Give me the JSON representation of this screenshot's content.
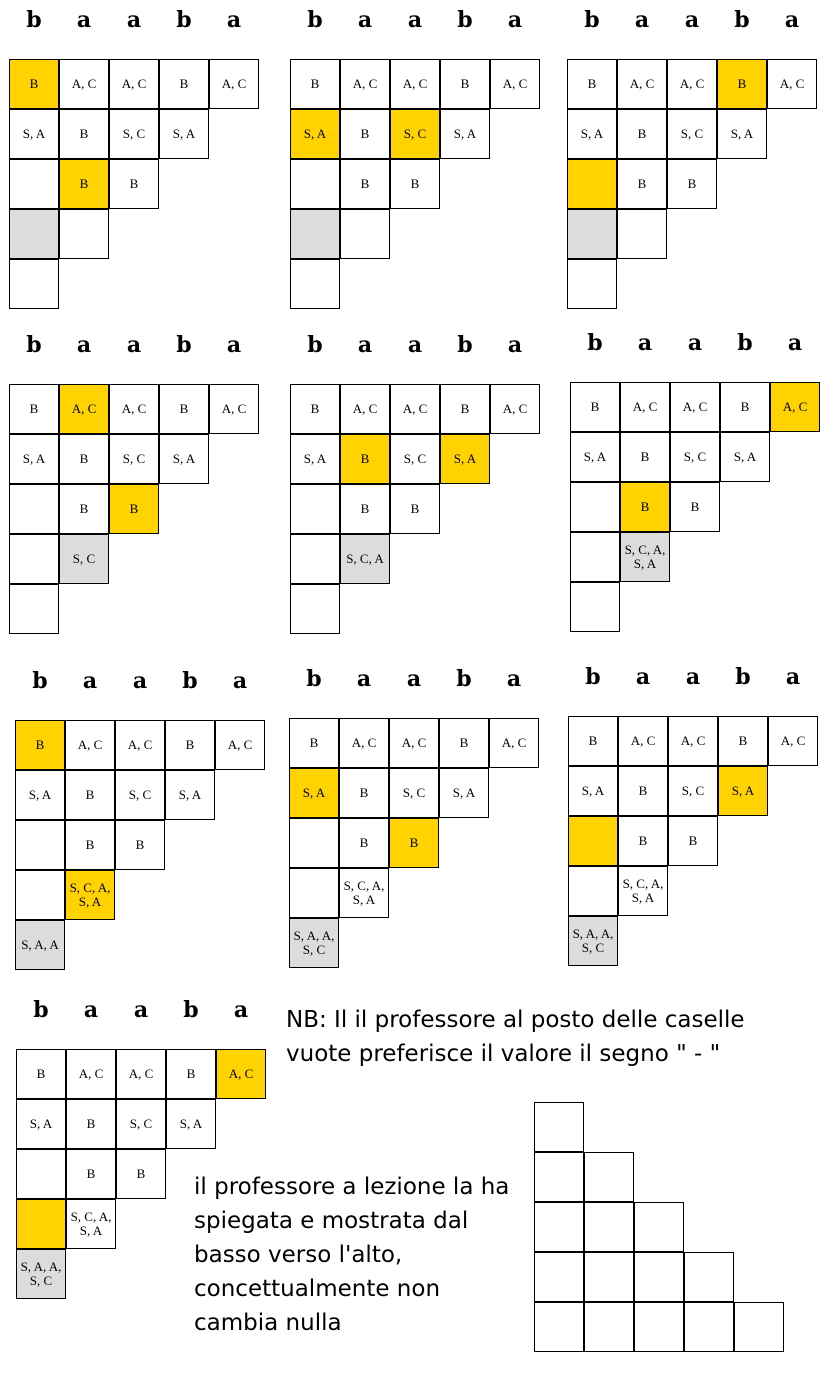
{
  "header_letters": [
    "b",
    "a",
    "a",
    "b",
    "a"
  ],
  "colors": {
    "highlight": "#ffd200",
    "computed": "#dcdcdc"
  },
  "panels": [
    {
      "id": "p1",
      "cells": {
        "0,0": "B",
        "0,1": "A, C",
        "0,2": "A, C",
        "0,3": "B",
        "0,4": "A, C",
        "1,0": "S, A",
        "1,1": "B",
        "1,2": "S, C",
        "1,3": "S, A",
        "2,0": "",
        "2,1": "B",
        "2,2": "B",
        "3,0": "",
        "3,1": "",
        "4,0": ""
      },
      "yellow": [
        "0,0",
        "2,1"
      ],
      "gray": [
        "3,0"
      ]
    },
    {
      "id": "p2",
      "cells": {
        "0,0": "B",
        "0,1": "A, C",
        "0,2": "A, C",
        "0,3": "B",
        "0,4": "A, C",
        "1,0": "S, A",
        "1,1": "B",
        "1,2": "S, C",
        "1,3": "S, A",
        "2,0": "",
        "2,1": "B",
        "2,2": "B",
        "3,0": "",
        "3,1": "",
        "4,0": ""
      },
      "yellow": [
        "1,0",
        "1,2"
      ],
      "gray": [
        "3,0"
      ]
    },
    {
      "id": "p3",
      "cells": {
        "0,0": "B",
        "0,1": "A, C",
        "0,2": "A, C",
        "0,3": "B",
        "0,4": "A, C",
        "1,0": "S, A",
        "1,1": "B",
        "1,2": "S, C",
        "1,3": "S, A",
        "2,0": "",
        "2,1": "B",
        "2,2": "B",
        "3,0": "",
        "3,1": "",
        "4,0": ""
      },
      "yellow": [
        "0,3",
        "2,0"
      ],
      "gray": [
        "3,0"
      ]
    },
    {
      "id": "p4",
      "cells": {
        "0,0": "B",
        "0,1": "A, C",
        "0,2": "A, C",
        "0,3": "B",
        "0,4": "A, C",
        "1,0": "S, A",
        "1,1": "B",
        "1,2": "S, C",
        "1,3": "S, A",
        "2,0": "",
        "2,1": "B",
        "2,2": "B",
        "3,0": "",
        "3,1": "S, C",
        "4,0": ""
      },
      "yellow": [
        "0,1",
        "2,2"
      ],
      "gray": [
        "3,1"
      ]
    },
    {
      "id": "p5",
      "cells": {
        "0,0": "B",
        "0,1": "A, C",
        "0,2": "A, C",
        "0,3": "B",
        "0,4": "A, C",
        "1,0": "S, A",
        "1,1": "B",
        "1,2": "S, C",
        "1,3": "S, A",
        "2,0": "",
        "2,1": "B",
        "2,2": "B",
        "3,0": "",
        "3,1": "S, C, A",
        "4,0": ""
      },
      "yellow": [
        "1,1",
        "1,3"
      ],
      "gray": [
        "3,1"
      ]
    },
    {
      "id": "p6",
      "cells": {
        "0,0": "B",
        "0,1": "A, C",
        "0,2": "A, C",
        "0,3": "B",
        "0,4": "A, C",
        "1,0": "S, A",
        "1,1": "B",
        "1,2": "S, C",
        "1,3": "S, A",
        "2,0": "",
        "2,1": "B",
        "2,2": "B",
        "3,0": "",
        "3,1": "S, C, A, S, A",
        "4,0": ""
      },
      "yellow": [
        "0,4",
        "2,1"
      ],
      "gray": [
        "3,1"
      ]
    },
    {
      "id": "p7",
      "cells": {
        "0,0": "B",
        "0,1": "A, C",
        "0,2": "A, C",
        "0,3": "B",
        "0,4": "A, C",
        "1,0": "S, A",
        "1,1": "B",
        "1,2": "S, C",
        "1,3": "S, A",
        "2,0": "",
        "2,1": "B",
        "2,2": "B",
        "3,0": "",
        "3,1": "S, C, A, S, A",
        "4,0": "S, A, A"
      },
      "yellow": [
        "0,0",
        "3,1"
      ],
      "gray": [
        "4,0"
      ]
    },
    {
      "id": "p8",
      "cells": {
        "0,0": "B",
        "0,1": "A, C",
        "0,2": "A, C",
        "0,3": "B",
        "0,4": "A, C",
        "1,0": "S, A",
        "1,1": "B",
        "1,2": "S, C",
        "1,3": "S, A",
        "2,0": "",
        "2,1": "B",
        "2,2": "B",
        "3,0": "",
        "3,1": "S, C, A, S, A",
        "4,0": "S, A, A, S, C"
      },
      "yellow": [
        "1,0",
        "2,2"
      ],
      "gray": [
        "4,0"
      ]
    },
    {
      "id": "p9",
      "cells": {
        "0,0": "B",
        "0,1": "A, C",
        "0,2": "A, C",
        "0,3": "B",
        "0,4": "A, C",
        "1,0": "S, A",
        "1,1": "B",
        "1,2": "S, C",
        "1,3": "S, A",
        "2,0": "",
        "2,1": "B",
        "2,2": "B",
        "3,0": "",
        "3,1": "S, C, A, S, A",
        "4,0": "S, A, A, S, C"
      },
      "yellow": [
        "1,3",
        "2,0"
      ],
      "gray": [
        "4,0"
      ]
    },
    {
      "id": "p10",
      "cells": {
        "0,0": "B",
        "0,1": "A, C",
        "0,2": "A, C",
        "0,3": "B",
        "0,4": "A, C",
        "1,0": "S, A",
        "1,1": "B",
        "1,2": "S, C",
        "1,3": "S, A",
        "2,0": "",
        "2,1": "B",
        "2,2": "B",
        "3,0": "",
        "3,1": "S, C, A, S, A",
        "4,0": "S, A, A, S, C"
      },
      "yellow": [
        "0,4",
        "3,0"
      ],
      "gray": [
        "4,0"
      ]
    }
  ],
  "notes": {
    "nb": "NB: Il il professore al posto delle caselle vuote preferisce il valore il segno \" - \"",
    "lesson": "il professore a lezione la ha spiegata e mostrata dal basso verso l'alto, concettualmente non cambia nulla"
  }
}
